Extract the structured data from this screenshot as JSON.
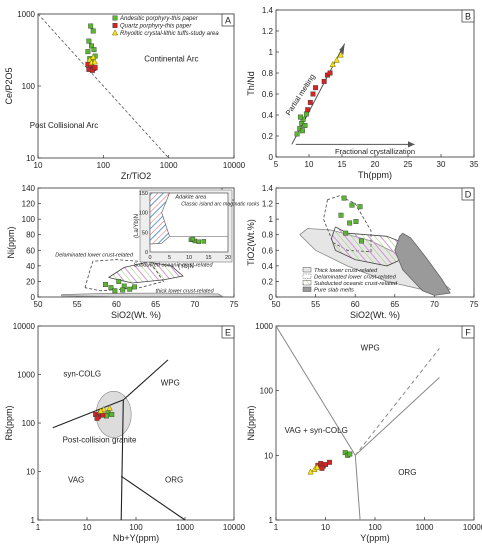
{
  "colors": {
    "andesitic": "#5bb531",
    "quartz": "#d42424",
    "rhyolitic": "#f4e11c",
    "inset_bg": "#eeeeee"
  },
  "chart_data": [
    {
      "panel": "A",
      "type": "scatter",
      "xscale": "log",
      "yscale": "log",
      "xlabel": "Zr/TiO2",
      "ylabel": "Ce/P2O5",
      "xlim": [
        10,
        10000
      ],
      "ylim": [
        10,
        1000
      ],
      "xticks": [
        "10",
        "100",
        "1000",
        "10000"
      ],
      "yticks": [
        "10",
        "100",
        "1000"
      ],
      "legend": [
        "Andesitic porphyry-this paper",
        "Quartz porphyry-this paper",
        "Rhyolitic crystal-lithic tuffs-study area"
      ],
      "regions": [
        "Continental Arc",
        "Post Collisional Arc"
      ],
      "series": [
        {
          "name": "Andesitic porphyry-this paper",
          "points": [
            [
              64,
              680
            ],
            [
              70,
              580
            ],
            [
              60,
              420
            ],
            [
              66,
              360
            ],
            [
              72,
              320
            ],
            [
              58,
              300
            ],
            [
              75,
              260
            ],
            [
              62,
              240
            ],
            [
              68,
              220
            ]
          ]
        },
        {
          "name": "Quartz porphyry-this paper",
          "points": [
            [
              58,
              200
            ],
            [
              65,
              185
            ],
            [
              72,
              175
            ],
            [
              60,
              170
            ],
            [
              68,
              165
            ],
            [
              75,
              180
            ]
          ]
        },
        {
          "name": "Rhyolitic crystal-lithic tuffs-study area",
          "points": [
            [
              62,
              230
            ],
            [
              70,
              250
            ],
            [
              66,
              210
            ],
            [
              74,
              215
            ]
          ]
        }
      ]
    },
    {
      "panel": "B",
      "type": "scatter",
      "xlabel": "Th(ppm)",
      "ylabel": "Th/Nd",
      "xlim": [
        5,
        35
      ],
      "ylim": [
        0,
        1.4
      ],
      "xticks": [
        "5",
        "10",
        "15",
        "20",
        "25",
        "30",
        "35"
      ],
      "yticks": [
        "0",
        "0.2",
        "0.4",
        "0.6",
        "0.8",
        "1",
        "1.2",
        "1.4"
      ],
      "annotations": [
        "Partial melting",
        "Fractional crystallization"
      ],
      "series": [
        {
          "name": "Andesitic porphyry-this paper",
          "points": [
            [
              8.2,
              0.22
            ],
            [
              8.6,
              0.27
            ],
            [
              8.9,
              0.32
            ],
            [
              9.1,
              0.36
            ],
            [
              9.4,
              0.3
            ],
            [
              9.0,
              0.25
            ],
            [
              8.7,
              0.38
            ],
            [
              9.6,
              0.41
            ]
          ]
        },
        {
          "name": "Quartz porphyry-this paper",
          "points": [
            [
              9.8,
              0.45
            ],
            [
              10.2,
              0.52
            ],
            [
              10.6,
              0.6
            ],
            [
              11.0,
              0.66
            ],
            [
              12.3,
              0.72
            ],
            [
              12.8,
              0.78
            ],
            [
              13.2,
              0.8
            ]
          ]
        },
        {
          "name": "Rhyolitic crystal-lithic tuffs-study area",
          "points": [
            [
              13.6,
              0.88
            ],
            [
              14.2,
              0.92
            ],
            [
              14.8,
              0.97
            ]
          ]
        }
      ]
    },
    {
      "panel": "C",
      "type": "scatter",
      "xlabel": "SiO2(Wt. %)",
      "ylabel": "Ni(ppm)",
      "xlim": [
        50,
        75
      ],
      "ylim": [
        0,
        140
      ],
      "xticks": [
        "50",
        "55",
        "60",
        "65",
        "70",
        "75"
      ],
      "yticks": [
        "0",
        "20",
        "40",
        "60",
        "80",
        "100",
        "120",
        "140"
      ],
      "region_labels": [
        "Delaminated lower crust-related",
        "Subducted oceanic crust-related",
        "thick lower crust-related"
      ],
      "series": [
        {
          "name": "Andesitic porphyry-this paper",
          "points": [
            [
              58.6,
              16
            ],
            [
              59.3,
              12
            ],
            [
              60.3,
              20
            ],
            [
              61.0,
              14
            ],
            [
              61.7,
              10
            ],
            [
              62.3,
              13
            ],
            [
              59.8,
              8
            ],
            [
              60.8,
              9
            ]
          ]
        }
      ],
      "inset": {
        "xlabel": "(Yb)N",
        "ylabel": "(La/Yb)N",
        "xlim": [
          0,
          20
        ],
        "ylim": [
          0,
          150
        ],
        "xticks": [
          "0",
          "5",
          "10",
          "15",
          "20"
        ],
        "yticks": [
          "0",
          "50",
          "100",
          "150"
        ],
        "annotations": [
          "Adakite area",
          "Classic island arc magmatic rocks"
        ],
        "points": [
          [
            10.5,
            31
          ],
          [
            11.5,
            28
          ],
          [
            12.5,
            26
          ],
          [
            13.8,
            27
          ],
          [
            11.0,
            33
          ]
        ]
      }
    },
    {
      "panel": "D",
      "type": "scatter",
      "xlabel": "SiO2(Wt. %)",
      "ylabel": "TiO2(Wt.%)",
      "xlim": [
        50,
        75
      ],
      "ylim": [
        0,
        1.4
      ],
      "xticks": [
        "50",
        "55",
        "60",
        "65",
        "70",
        "75"
      ],
      "yticks": [
        "0",
        "0.2",
        "0.4",
        "0.6",
        "0.8",
        "1",
        "1.2",
        "1.4"
      ],
      "legend": [
        "Thick lower crust-related",
        "Delaminated lower crust-related",
        "Subducted oceanic crust-related",
        "Pure slab melts"
      ],
      "series": [
        {
          "name": "Andesitic porphyry-this paper",
          "points": [
            [
              58.6,
              1.27
            ],
            [
              59.6,
              1.18
            ],
            [
              60.6,
              1.16
            ],
            [
              58.2,
              1.05
            ],
            [
              59.3,
              0.95
            ],
            [
              60.1,
              0.97
            ],
            [
              58.8,
              0.82
            ],
            [
              60.8,
              0.72
            ]
          ]
        }
      ]
    },
    {
      "panel": "E",
      "type": "scatter",
      "xscale": "log",
      "yscale": "log",
      "xlabel": "Nb+Y(ppm)",
      "ylabel": "Rb(ppm)",
      "xlim": [
        1,
        10000
      ],
      "ylim": [
        1,
        10000
      ],
      "xticks": [
        "1",
        "10",
        "100",
        "1000",
        "10000"
      ],
      "yticks": [
        "1",
        "10",
        "100",
        "1000",
        "10000"
      ],
      "regions": [
        "syn-COLG",
        "WPG",
        "VAG",
        "ORG",
        "Post-collision granite"
      ],
      "series": [
        {
          "name": "Andesitic porphyry-this paper",
          "points": [
            [
              27,
              160
            ],
            [
              32,
              150
            ],
            [
              25,
              140
            ]
          ]
        },
        {
          "name": "Quartz porphyry-this paper",
          "points": [
            [
              15,
              150
            ],
            [
              17,
              135
            ],
            [
              19,
              160
            ],
            [
              21,
              145
            ],
            [
              16,
              125
            ]
          ]
        },
        {
          "name": "Rhyolitic crystal-lithic tuffs-study area",
          "points": [
            [
              22,
              190
            ],
            [
              19,
              175
            ],
            [
              29,
              200
            ]
          ]
        }
      ]
    },
    {
      "panel": "F",
      "type": "scatter",
      "xscale": "log",
      "yscale": "log",
      "xlabel": "Y(ppm)",
      "ylabel": "Nb(ppm)",
      "xlim": [
        1,
        10000
      ],
      "ylim": [
        1,
        1000
      ],
      "xticks": [
        "1",
        "10",
        "100",
        "1000",
        "10000"
      ],
      "yticks": [
        "1",
        "10",
        "100",
        "1000"
      ],
      "regions": [
        "WPG",
        "VAG + syn-COLG",
        "ORG"
      ],
      "series": [
        {
          "name": "Andesitic porphyry-this paper",
          "points": [
            [
              25,
              11
            ],
            [
              28,
              10
            ],
            [
              31,
              10.5
            ]
          ]
        },
        {
          "name": "Quartz porphyry-this paper",
          "points": [
            [
              7,
              7
            ],
            [
              8,
              7.5
            ],
            [
              9,
              6.8
            ],
            [
              10,
              7.2
            ],
            [
              12,
              7.8
            ],
            [
              8.5,
              6.3
            ]
          ]
        },
        {
          "name": "Rhyolitic crystal-lithic tuffs-study area",
          "points": [
            [
              5,
              5.5
            ],
            [
              6,
              6
            ],
            [
              6.8,
              6.5
            ]
          ]
        }
      ]
    }
  ]
}
